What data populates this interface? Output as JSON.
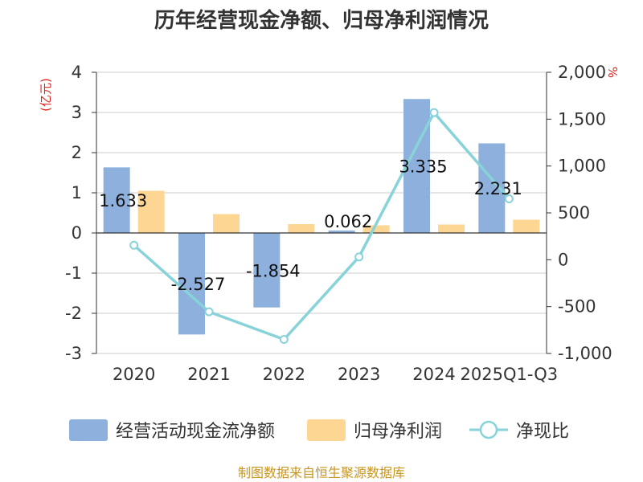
{
  "chart_data": {
    "type": "bar",
    "title": "历年经营现金净额、归母净利润情况",
    "categories": [
      "2020",
      "2021",
      "2022",
      "2023",
      "2024",
      "2025Q1-Q3"
    ],
    "left_axis": {
      "unit": "(亿元)",
      "ylim": [
        -3,
        4
      ],
      "ticks": [
        4,
        3,
        2,
        1,
        0,
        -1,
        -2,
        -3
      ]
    },
    "right_axis": {
      "unit": "%",
      "ylim": [
        -1000,
        2000
      ],
      "ticks": [
        "2,000",
        "1,500",
        "1,000",
        "500",
        "0",
        "-500",
        "-1,000"
      ],
      "tick_values": [
        2000,
        1500,
        1000,
        500,
        0,
        -500,
        -1000
      ]
    },
    "series": [
      {
        "name": "经营活动现金流净额",
        "type": "bar",
        "axis": "left",
        "color": "#8eb0dc",
        "values": [
          1.633,
          -2.527,
          -1.854,
          0.062,
          3.335,
          2.231
        ],
        "labels": [
          "1.633",
          "-2.527",
          "-1.854",
          "0.062",
          "3.335",
          "2.231"
        ]
      },
      {
        "name": "归母净利润",
        "type": "bar",
        "axis": "left",
        "color": "#fdd694",
        "values": [
          1.05,
          0.47,
          0.22,
          0.19,
          0.21,
          0.33
        ]
      },
      {
        "name": "净现比",
        "type": "line",
        "axis": "right",
        "color": "#88d3d9",
        "values": [
          155,
          -555,
          -850,
          30,
          1570,
          650
        ]
      }
    ],
    "grid": true,
    "legend_position": "bottom"
  },
  "source": "制图数据来自恒生聚源数据库"
}
